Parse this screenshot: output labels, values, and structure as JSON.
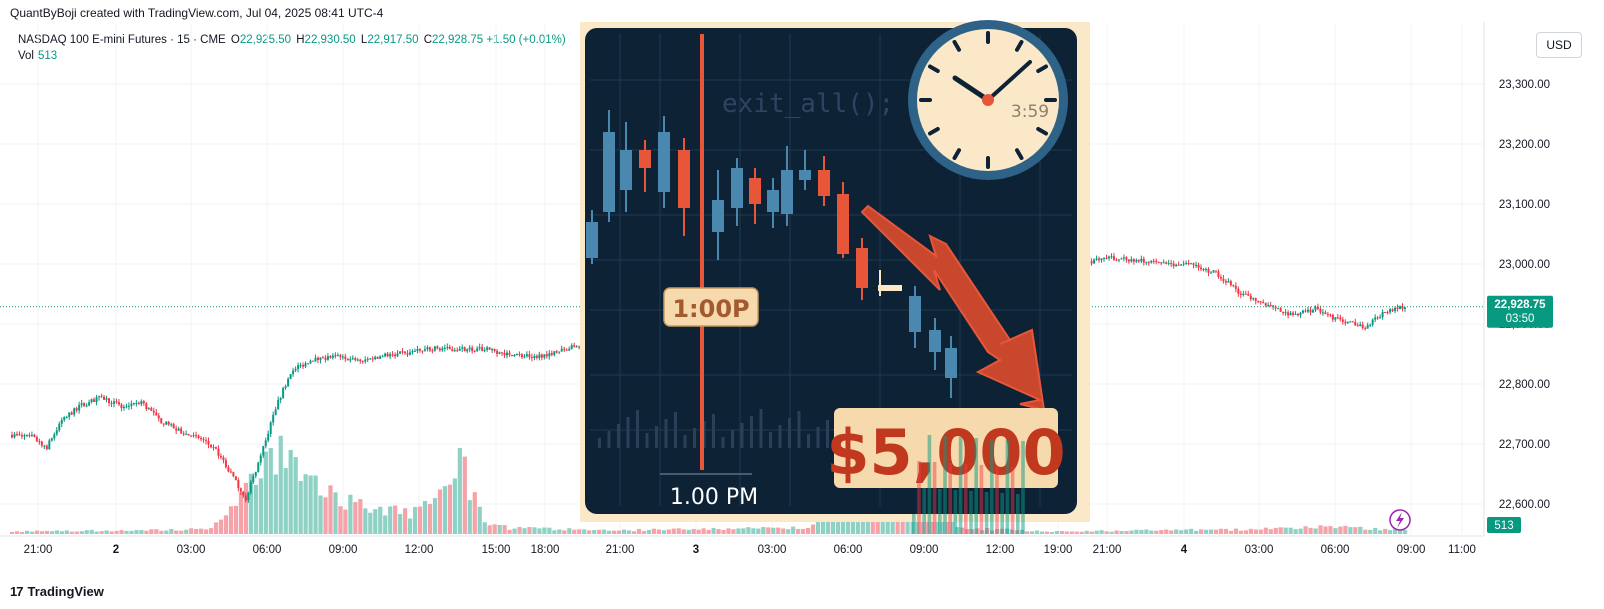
{
  "credit": "QuantByBoji created with TradingView.com, Jul 04, 2025 08:41 UTC-4",
  "legend": {
    "symbol": "NASDAQ 100 E-mini Futures · 15 · CME",
    "o_label": "O",
    "o_value": "22,925.50",
    "h_label": "H",
    "h_value": "22,930.50",
    "l_label": "L",
    "l_value": "22,917.50",
    "c_label": "C",
    "c_value": "22,928.75",
    "change": "+1.50 (+0.01%)",
    "vol_label": "Vol",
    "vol_value": "513"
  },
  "currency_button": "USD",
  "brand": "TradingView",
  "colors": {
    "up": "#089981",
    "down": "#f23645",
    "vol_up": "#8fd1c5",
    "vol_down": "#f5a3a8",
    "badge": "#089981",
    "overlay_bg": "#0e2236",
    "overlay_frame": "#fbe8c8",
    "overlay_orange": "#e8563a",
    "overlay_blue": "#4b88b0"
  },
  "chart_data": {
    "type": "candlestick",
    "title": "NASDAQ 100 E-mini Futures · 15 · CME",
    "ylabel": "USD",
    "ylim": [
      22550,
      23400
    ],
    "y_ticks": [
      "22,600.00",
      "22,700.00",
      "22,800.00",
      "22,900.00",
      "23,000.00",
      "23,100.00",
      "23,200.00",
      "23,300.00"
    ],
    "y_tick_values": [
      22600,
      22700,
      22800,
      22900,
      23000,
      23100,
      23200,
      23300
    ],
    "x_ticks": [
      "21:00",
      "2",
      "03:00",
      "06:00",
      "09:00",
      "12:00",
      "15:00",
      "18:00",
      "21:00",
      "3",
      "03:00",
      "06:00",
      "09:00",
      "12:00",
      "19:00",
      "21:00",
      "4",
      "03:00",
      "06:00",
      "09:00",
      "11:00"
    ],
    "last_price": "22,928.75",
    "last_price_value": 22928.75,
    "countdown": "03:50",
    "volume_label": "513",
    "price_path": [
      [
        0,
        22715
      ],
      [
        8,
        22712
      ],
      [
        14,
        22695
      ],
      [
        20,
        22740
      ],
      [
        28,
        22765
      ],
      [
        36,
        22778
      ],
      [
        44,
        22762
      ],
      [
        52,
        22770
      ],
      [
        60,
        22738
      ],
      [
        68,
        22720
      ],
      [
        76,
        22708
      ],
      [
        82,
        22690
      ],
      [
        88,
        22650
      ],
      [
        94,
        22610
      ],
      [
        100,
        22680
      ],
      [
        106,
        22760
      ],
      [
        112,
        22820
      ],
      [
        120,
        22840
      ],
      [
        130,
        22845
      ],
      [
        140,
        22838
      ],
      [
        150,
        22848
      ],
      [
        160,
        22852
      ],
      [
        170,
        22860
      ],
      [
        180,
        22858
      ],
      [
        190,
        22858
      ],
      [
        200,
        22850
      ],
      [
        210,
        22845
      ],
      [
        220,
        22855
      ],
      [
        230,
        22868
      ],
      [
        240,
        22860
      ],
      [
        250,
        22870
      ],
      [
        260,
        22880
      ],
      [
        270,
        22872
      ],
      [
        280,
        22860
      ],
      [
        290,
        22852
      ],
      [
        300,
        22865
      ],
      [
        310,
        22870
      ],
      [
        320,
        22880
      ],
      [
        330,
        22900
      ],
      [
        336,
        22990
      ],
      [
        344,
        23050
      ],
      [
        352,
        23060
      ],
      [
        360,
        23085
      ],
      [
        368,
        23080
      ],
      [
        376,
        23060
      ],
      [
        386,
        23050
      ],
      [
        396,
        23042
      ],
      [
        404,
        23035
      ],
      [
        414,
        23040
      ],
      [
        424,
        23035
      ],
      [
        434,
        23005
      ],
      [
        444,
        23010
      ],
      [
        454,
        23005
      ],
      [
        464,
        23000
      ],
      [
        474,
        22998
      ],
      [
        484,
        22985
      ],
      [
        494,
        22950
      ],
      [
        504,
        22932
      ],
      [
        514,
        22915
      ],
      [
        524,
        22925
      ],
      [
        534,
        22905
      ],
      [
        544,
        22895
      ],
      [
        552,
        22920
      ],
      [
        560,
        22928
      ]
    ],
    "volume_profile": [
      [
        0,
        0.02
      ],
      [
        80,
        0.04
      ],
      [
        90,
        0.25
      ],
      [
        100,
        0.55
      ],
      [
        110,
        0.7
      ],
      [
        120,
        0.45
      ],
      [
        130,
        0.3
      ],
      [
        140,
        0.25
      ],
      [
        150,
        0.2
      ],
      [
        160,
        0.18
      ],
      [
        170,
        0.28
      ],
      [
        180,
        0.6
      ],
      [
        190,
        0.1
      ],
      [
        200,
        0.05
      ],
      [
        240,
        0.03
      ],
      [
        320,
        0.05
      ],
      [
        330,
        0.35
      ],
      [
        340,
        0.55
      ],
      [
        350,
        0.6
      ],
      [
        360,
        0.4
      ],
      [
        370,
        0.3
      ],
      [
        380,
        0.05
      ],
      [
        420,
        0.02
      ],
      [
        500,
        0.04
      ],
      [
        530,
        0.06
      ],
      [
        560,
        0.03
      ]
    ]
  },
  "overlay": {
    "code_text": "exit_all();",
    "clock_text": "3:59",
    "time_badge": "1:00P",
    "time_caption": "1.00 PM",
    "amount": "$5,000"
  }
}
